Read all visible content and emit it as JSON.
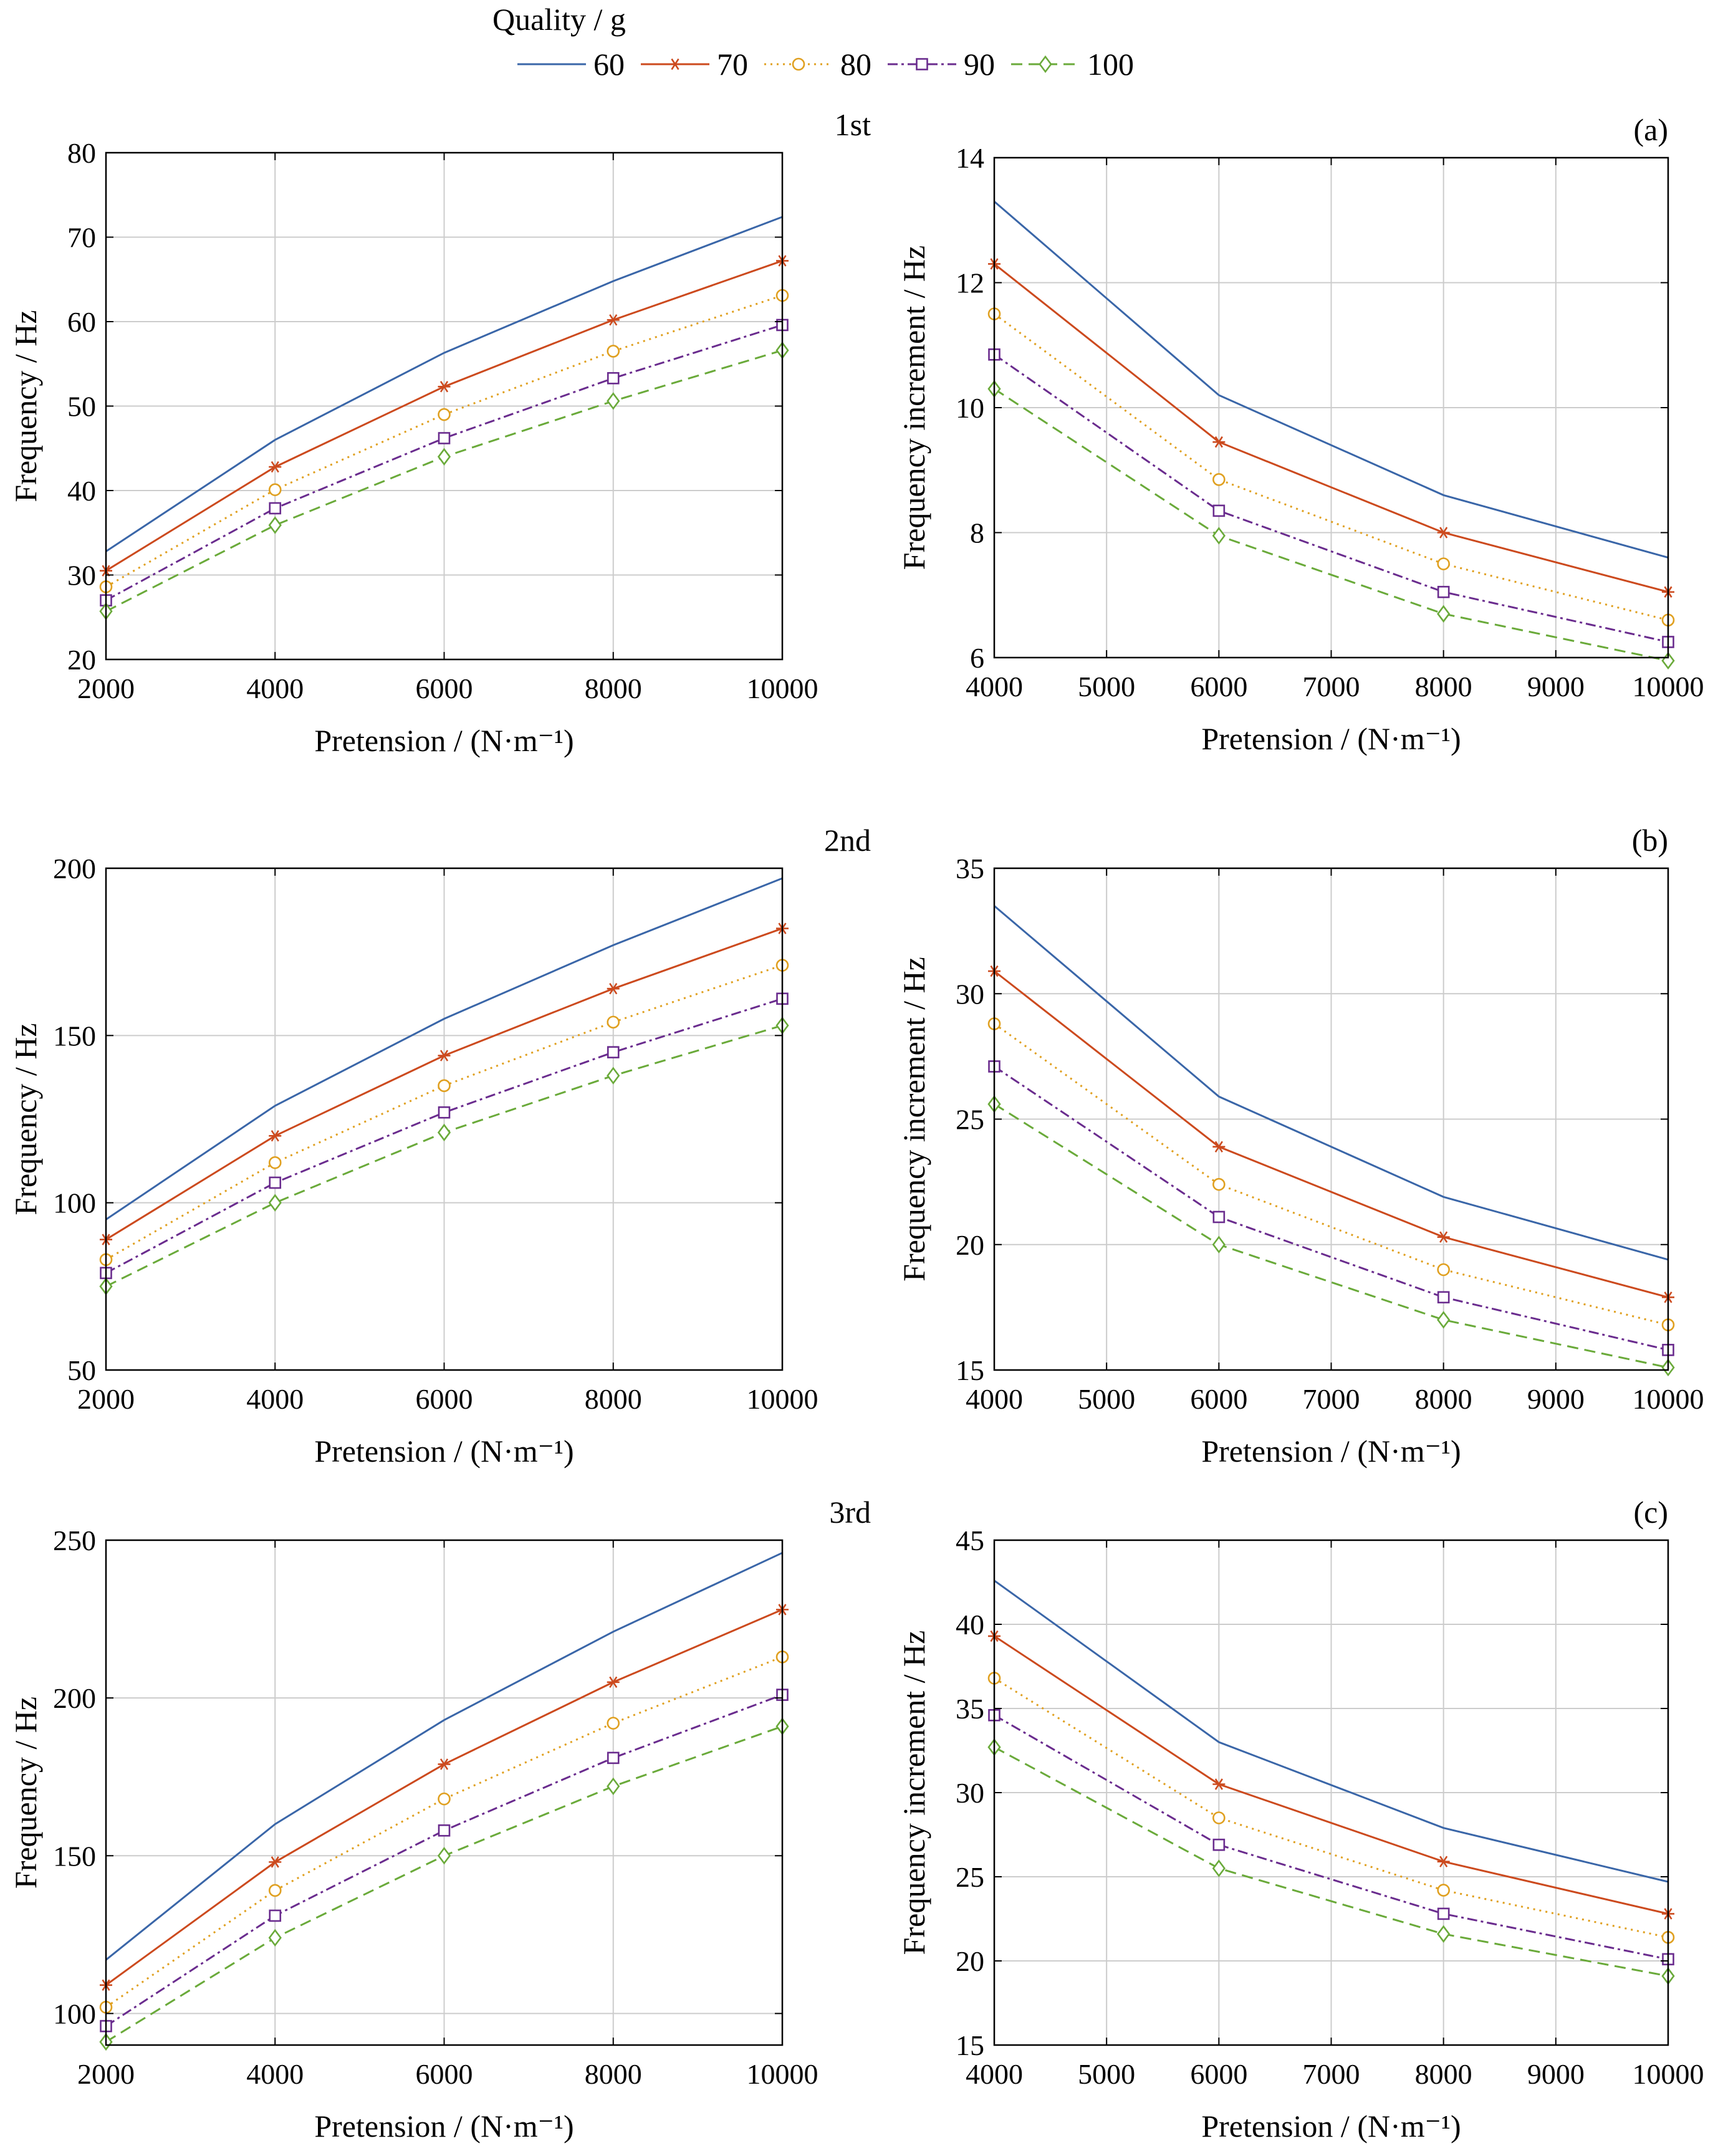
{
  "legend": {
    "title": "Quality / g",
    "entries": [
      {
        "name": "60",
        "color": "#3a66a8",
        "marker": "none",
        "dash": ""
      },
      {
        "name": "70",
        "color": "#cc4a1e",
        "marker": "star",
        "dash": ""
      },
      {
        "name": "80",
        "color": "#e0a020",
        "marker": "circle",
        "dash": "3,7"
      },
      {
        "name": "90",
        "color": "#6a2c8e",
        "marker": "square",
        "dash": "16,6,4,6"
      },
      {
        "name": "100",
        "color": "#6aaa3a",
        "marker": "diamond",
        "dash": "18,10"
      }
    ]
  },
  "chart_data": [
    {
      "type": "line",
      "panel": "1st",
      "tag": "",
      "xlabel": "Pretension / (N·m⁻¹)",
      "ylabel": "Frequency / Hz",
      "xlim": [
        2000,
        10000
      ],
      "ylim": [
        20,
        80
      ],
      "xticks": [
        2000,
        4000,
        6000,
        8000,
        10000
      ],
      "yticks": [
        20,
        30,
        40,
        50,
        60,
        70,
        80
      ],
      "grid": true,
      "x": [
        2000,
        4000,
        6000,
        8000,
        10000
      ],
      "series": [
        {
          "name": "60",
          "values": [
            32.8,
            46.0,
            56.3,
            64.8,
            72.4
          ]
        },
        {
          "name": "70",
          "values": [
            30.5,
            42.8,
            52.3,
            60.2,
            67.2
          ]
        },
        {
          "name": "80",
          "values": [
            28.6,
            40.1,
            49.0,
            56.5,
            63.1
          ]
        },
        {
          "name": "90",
          "values": [
            27.0,
            37.9,
            46.2,
            53.3,
            59.6
          ]
        },
        {
          "name": "100",
          "values": [
            25.7,
            35.9,
            44.0,
            50.6,
            56.6
          ]
        }
      ]
    },
    {
      "type": "line",
      "panel": "",
      "tag": "(a)",
      "xlabel": "Pretension / (N·m⁻¹)",
      "ylabel": "Frequency increment / Hz",
      "xlim": [
        4000,
        10000
      ],
      "ylim": [
        6,
        14
      ],
      "xticks": [
        4000,
        5000,
        6000,
        7000,
        8000,
        9000,
        10000
      ],
      "yticks": [
        6,
        8,
        10,
        12,
        14
      ],
      "grid": true,
      "x": [
        4000,
        6000,
        8000,
        10000
      ],
      "series": [
        {
          "name": "60",
          "values": [
            13.3,
            10.2,
            8.6,
            7.6
          ]
        },
        {
          "name": "70",
          "values": [
            12.3,
            9.45,
            8.0,
            7.05
          ]
        },
        {
          "name": "80",
          "values": [
            11.5,
            8.85,
            7.5,
            6.6
          ]
        },
        {
          "name": "90",
          "values": [
            10.85,
            8.35,
            7.05,
            6.25
          ]
        },
        {
          "name": "100",
          "values": [
            10.3,
            7.95,
            6.7,
            5.95
          ]
        }
      ]
    },
    {
      "type": "line",
      "panel": "2nd",
      "tag": "",
      "xlabel": "Pretension / (N·m⁻¹)",
      "ylabel": "Frequency / Hz",
      "xlim": [
        2000,
        10000
      ],
      "ylim": [
        50,
        200
      ],
      "xticks": [
        2000,
        4000,
        6000,
        8000,
        10000
      ],
      "yticks": [
        50,
        100,
        150,
        200
      ],
      "grid": true,
      "x": [
        2000,
        4000,
        6000,
        8000,
        10000
      ],
      "series": [
        {
          "name": "60",
          "values": [
            95,
            129,
            155,
            177,
            197
          ]
        },
        {
          "name": "70",
          "values": [
            89,
            120,
            144,
            164,
            182
          ]
        },
        {
          "name": "80",
          "values": [
            83,
            112,
            135,
            154,
            171
          ]
        },
        {
          "name": "90",
          "values": [
            79,
            106,
            127,
            145,
            161
          ]
        },
        {
          "name": "100",
          "values": [
            75,
            100,
            121,
            138,
            153
          ]
        }
      ]
    },
    {
      "type": "line",
      "panel": "",
      "tag": "(b)",
      "xlabel": "Pretension / (N·m⁻¹)",
      "ylabel": "Frequency increment / Hz",
      "xlim": [
        4000,
        10000
      ],
      "ylim": [
        15,
        35
      ],
      "xticks": [
        4000,
        5000,
        6000,
        7000,
        8000,
        9000,
        10000
      ],
      "yticks": [
        15,
        20,
        25,
        30,
        35
      ],
      "grid": true,
      "x": [
        4000,
        6000,
        8000,
        10000
      ],
      "series": [
        {
          "name": "60",
          "values": [
            33.5,
            25.9,
            21.9,
            19.4
          ]
        },
        {
          "name": "70",
          "values": [
            30.9,
            23.9,
            20.3,
            17.9
          ]
        },
        {
          "name": "80",
          "values": [
            28.8,
            22.4,
            19.0,
            16.8
          ]
        },
        {
          "name": "90",
          "values": [
            27.1,
            21.1,
            17.9,
            15.8
          ]
        },
        {
          "name": "100",
          "values": [
            25.6,
            20.0,
            17.0,
            15.1
          ]
        }
      ]
    },
    {
      "type": "line",
      "panel": "3rd",
      "tag": "",
      "xlabel": "Pretension / (N·m⁻¹)",
      "ylabel": "Frequency / Hz",
      "xlim": [
        2000,
        10000
      ],
      "ylim": [
        90,
        250
      ],
      "xticks": [
        2000,
        4000,
        6000,
        8000,
        10000
      ],
      "yticks": [
        100,
        150,
        200,
        250
      ],
      "grid": true,
      "x": [
        2000,
        4000,
        6000,
        8000,
        10000
      ],
      "series": [
        {
          "name": "60",
          "values": [
            117,
            160,
            193,
            221,
            246
          ]
        },
        {
          "name": "70",
          "values": [
            109,
            148,
            179,
            205,
            228
          ]
        },
        {
          "name": "80",
          "values": [
            102,
            139,
            168,
            192,
            213
          ]
        },
        {
          "name": "90",
          "values": [
            96,
            131,
            158,
            181,
            201
          ]
        },
        {
          "name": "100",
          "values": [
            91,
            124,
            150,
            172,
            191
          ]
        }
      ]
    },
    {
      "type": "line",
      "panel": "",
      "tag": "(c)",
      "xlabel": "Pretension / (N·m⁻¹)",
      "ylabel": "Frequency increment / Hz",
      "xlim": [
        4000,
        10000
      ],
      "ylim": [
        15,
        45
      ],
      "xticks": [
        4000,
        5000,
        6000,
        7000,
        8000,
        9000,
        10000
      ],
      "yticks": [
        15,
        20,
        25,
        30,
        35,
        40,
        45
      ],
      "grid": true,
      "x": [
        4000,
        6000,
        8000,
        10000
      ],
      "series": [
        {
          "name": "60",
          "values": [
            42.6,
            33.0,
            27.9,
            24.7
          ]
        },
        {
          "name": "70",
          "values": [
            39.3,
            30.5,
            25.9,
            22.8
          ]
        },
        {
          "name": "80",
          "values": [
            36.8,
            28.5,
            24.2,
            21.4
          ]
        },
        {
          "name": "90",
          "values": [
            34.6,
            26.9,
            22.8,
            20.1
          ]
        },
        {
          "name": "100",
          "values": [
            32.7,
            25.5,
            21.6,
            19.1
          ]
        }
      ]
    }
  ]
}
